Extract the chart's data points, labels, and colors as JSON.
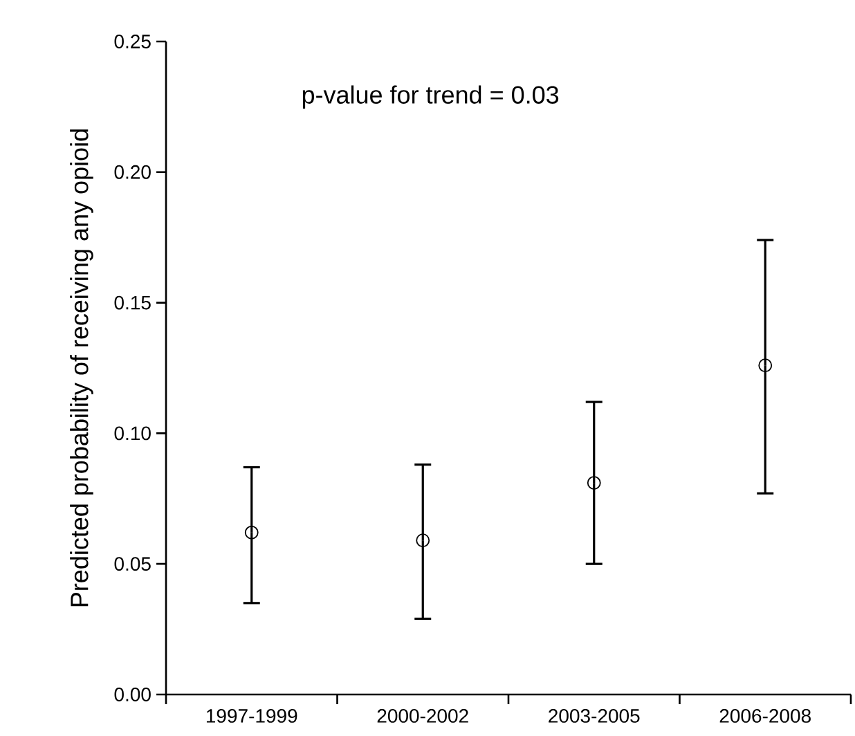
{
  "chart_data": {
    "type": "scatter",
    "ylabel": "Predicted probability of receiving any opioid",
    "categories": [
      "1997-1999",
      "2000-2002",
      "2003-2005",
      "2006-2008"
    ],
    "values": [
      0.062,
      0.059,
      0.081,
      0.126
    ],
    "errors": [
      [
        0.035,
        0.087
      ],
      [
        0.029,
        0.088
      ],
      [
        0.05,
        0.112
      ],
      [
        0.077,
        0.174
      ]
    ],
    "color": "#000000",
    "marker": "circle",
    "ylim": [
      0,
      0.25
    ],
    "yticks": [
      {
        "value": 0,
        "label": "0.00"
      },
      {
        "value": 0.05,
        "label": "0.05"
      },
      {
        "value": 0.1,
        "label": "0.10"
      },
      {
        "value": 0.15,
        "label": "0.15"
      },
      {
        "value": 0.2,
        "label": "0.20"
      },
      {
        "value": 0.25,
        "label": "0.25"
      }
    ],
    "annotations": [
      "p-value for trend = 0.03"
    ]
  }
}
